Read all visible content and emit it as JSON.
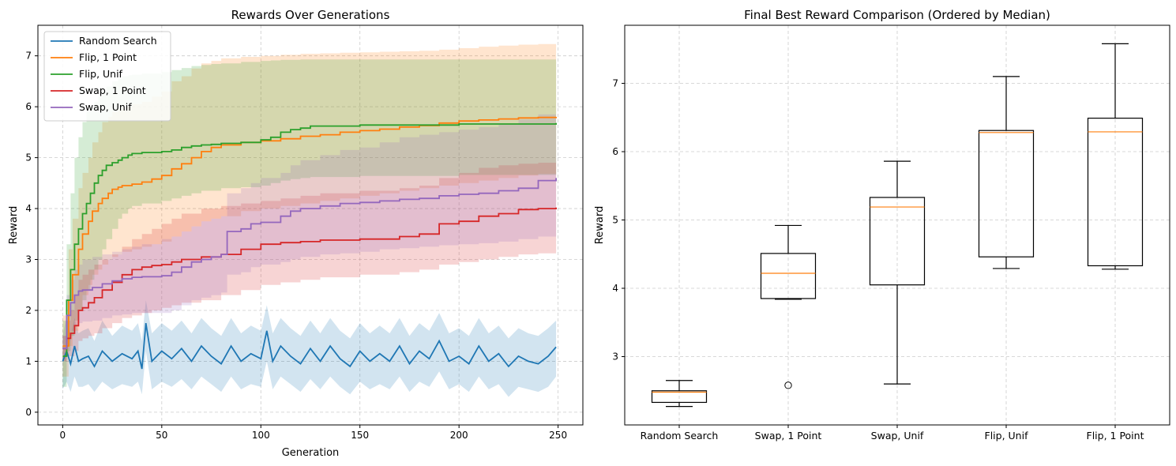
{
  "chart_data": [
    {
      "type": "line",
      "title": "Rewards Over Generations",
      "xlabel": "Generation",
      "ylabel": "Reward",
      "xlim": [
        -12.5,
        262.5
      ],
      "ylim": [
        -0.25,
        7.6
      ],
      "xticks": [
        0,
        50,
        100,
        150,
        200,
        250
      ],
      "yticks": [
        0,
        1,
        2,
        3,
        4,
        5,
        6,
        7
      ],
      "grid": true,
      "legend": "top-left",
      "series": [
        {
          "name": "Random Search",
          "color": "#1f77b4",
          "kind": "noisy",
          "x": [
            0,
            2,
            4,
            6,
            8,
            10,
            13,
            16,
            20,
            25,
            30,
            35,
            38,
            40,
            42,
            45,
            50,
            55,
            60,
            65,
            70,
            75,
            80,
            85,
            90,
            95,
            100,
            103,
            106,
            110,
            115,
            120,
            125,
            130,
            135,
            140,
            145,
            150,
            155,
            160,
            165,
            170,
            175,
            180,
            185,
            190,
            195,
            200,
            205,
            210,
            215,
            220,
            225,
            230,
            235,
            240,
            245,
            249
          ],
          "y": [
            1.0,
            1.2,
            0.95,
            1.3,
            1.0,
            1.05,
            1.1,
            0.9,
            1.2,
            1.0,
            1.15,
            1.05,
            1.2,
            0.85,
            1.75,
            1.0,
            1.2,
            1.05,
            1.25,
            1.0,
            1.3,
            1.1,
            0.95,
            1.3,
            1.0,
            1.15,
            1.05,
            1.6,
            1.0,
            1.3,
            1.1,
            0.95,
            1.25,
            1.0,
            1.3,
            1.05,
            0.9,
            1.2,
            1.0,
            1.15,
            1.0,
            1.3,
            0.95,
            1.2,
            1.05,
            1.4,
            1.0,
            1.1,
            0.95,
            1.3,
            1.0,
            1.15,
            0.9,
            1.1,
            1.0,
            0.95,
            1.1,
            1.28
          ],
          "upper": [
            1.5,
            1.9,
            1.5,
            1.85,
            1.55,
            1.6,
            1.65,
            1.4,
            1.8,
            1.5,
            1.7,
            1.6,
            1.75,
            1.4,
            2.2,
            1.55,
            1.75,
            1.6,
            1.8,
            1.55,
            1.85,
            1.65,
            1.5,
            1.85,
            1.55,
            1.7,
            1.6,
            2.1,
            1.55,
            1.85,
            1.65,
            1.5,
            1.8,
            1.55,
            1.85,
            1.6,
            1.45,
            1.75,
            1.55,
            1.7,
            1.55,
            1.85,
            1.5,
            1.75,
            1.6,
            1.95,
            1.55,
            1.65,
            1.5,
            1.85,
            1.55,
            1.7,
            1.45,
            1.65,
            1.55,
            1.5,
            1.65,
            1.8
          ],
          "lower": [
            0.45,
            0.6,
            0.4,
            0.7,
            0.5,
            0.5,
            0.55,
            0.4,
            0.6,
            0.45,
            0.55,
            0.5,
            0.6,
            0.35,
            1.2,
            0.45,
            0.6,
            0.5,
            0.65,
            0.45,
            0.7,
            0.55,
            0.4,
            0.7,
            0.45,
            0.55,
            0.5,
            1.0,
            0.45,
            0.7,
            0.55,
            0.4,
            0.65,
            0.45,
            0.7,
            0.5,
            0.35,
            0.6,
            0.45,
            0.55,
            0.45,
            0.7,
            0.4,
            0.6,
            0.5,
            0.8,
            0.45,
            0.55,
            0.4,
            0.7,
            0.45,
            0.55,
            0.3,
            0.5,
            0.45,
            0.4,
            0.5,
            0.7
          ]
        },
        {
          "name": "Flip, 1 Point",
          "color": "#ff7f0e",
          "kind": "step",
          "x": [
            0,
            3,
            5,
            8,
            10,
            13,
            15,
            18,
            20,
            23,
            25,
            28,
            30,
            35,
            40,
            45,
            50,
            55,
            60,
            65,
            70,
            75,
            80,
            90,
            100,
            110,
            120,
            130,
            140,
            150,
            160,
            170,
            180,
            190,
            200,
            210,
            220,
            230,
            240,
            249
          ],
          "y": [
            1.3,
            2.2,
            2.7,
            3.2,
            3.5,
            3.75,
            3.95,
            4.1,
            4.2,
            4.3,
            4.38,
            4.42,
            4.45,
            4.48,
            4.52,
            4.58,
            4.65,
            4.78,
            4.88,
            5.0,
            5.12,
            5.2,
            5.25,
            5.3,
            5.33,
            5.37,
            5.42,
            5.45,
            5.5,
            5.53,
            5.56,
            5.6,
            5.63,
            5.68,
            5.72,
            5.74,
            5.76,
            5.78,
            5.79,
            5.8
          ],
          "upper": [
            1.9,
            3.2,
            3.8,
            4.4,
            4.7,
            5.0,
            5.3,
            5.5,
            5.7,
            5.8,
            5.9,
            5.95,
            6.0,
            6.05,
            6.1,
            6.2,
            6.3,
            6.5,
            6.6,
            6.75,
            6.85,
            6.9,
            6.95,
            6.98,
            7.0,
            7.02,
            7.04,
            7.05,
            7.06,
            7.07,
            7.08,
            7.09,
            7.1,
            7.12,
            7.15,
            7.18,
            7.2,
            7.22,
            7.23,
            7.24
          ],
          "lower": [
            0.7,
            1.3,
            1.6,
            2.0,
            2.3,
            2.5,
            2.7,
            2.8,
            2.9,
            3.0,
            3.05,
            3.1,
            3.15,
            3.2,
            3.25,
            3.3,
            3.35,
            3.45,
            3.55,
            3.65,
            3.75,
            3.8,
            3.85,
            3.95,
            4.0,
            4.05,
            4.1,
            4.15,
            4.2,
            4.25,
            4.3,
            4.35,
            4.4,
            4.45,
            4.5,
            4.55,
            4.6,
            4.65,
            4.68,
            4.7
          ]
        },
        {
          "name": "Flip, Unif",
          "color": "#2ca02c",
          "kind": "step",
          "x": [
            0,
            2,
            4,
            6,
            8,
            10,
            12,
            14,
            16,
            18,
            20,
            22,
            25,
            28,
            30,
            33,
            35,
            40,
            50,
            55,
            60,
            65,
            70,
            75,
            80,
            90,
            100,
            105,
            110,
            115,
            120,
            125,
            150,
            200,
            249
          ],
          "y": [
            1.1,
            2.2,
            2.8,
            3.3,
            3.6,
            3.9,
            4.1,
            4.3,
            4.5,
            4.65,
            4.75,
            4.85,
            4.9,
            4.95,
            5.0,
            5.05,
            5.08,
            5.1,
            5.12,
            5.15,
            5.2,
            5.23,
            5.25,
            5.26,
            5.28,
            5.3,
            5.35,
            5.4,
            5.5,
            5.55,
            5.58,
            5.62,
            5.64,
            5.66,
            5.68
          ],
          "upper": [
            1.8,
            3.3,
            4.3,
            5.0,
            5.4,
            5.7,
            5.9,
            6.0,
            6.1,
            6.2,
            6.3,
            6.4,
            6.5,
            6.55,
            6.6,
            6.62,
            6.63,
            6.65,
            6.68,
            6.72,
            6.76,
            6.8,
            6.82,
            6.84,
            6.85,
            6.88,
            6.9,
            6.91,
            6.92,
            6.92,
            6.93,
            6.93,
            6.93,
            6.93,
            6.93
          ],
          "lower": [
            0.5,
            1.2,
            1.5,
            1.8,
            2.0,
            2.2,
            2.4,
            2.6,
            2.8,
            3.0,
            3.2,
            3.4,
            3.6,
            3.8,
            3.9,
            4.0,
            4.05,
            4.1,
            4.15,
            4.2,
            4.25,
            4.3,
            4.35,
            4.35,
            4.4,
            4.42,
            4.45,
            4.5,
            4.55,
            4.58,
            4.6,
            4.62,
            4.64,
            4.66,
            4.68
          ]
        },
        {
          "name": "Swap, 1 Point",
          "color": "#d62728",
          "kind": "step",
          "x": [
            0,
            2,
            4,
            6,
            8,
            10,
            13,
            16,
            20,
            25,
            30,
            35,
            40,
            45,
            50,
            55,
            60,
            70,
            80,
            90,
            100,
            110,
            120,
            130,
            150,
            170,
            180,
            190,
            200,
            210,
            220,
            230,
            240,
            249
          ],
          "y": [
            1.25,
            1.45,
            1.55,
            1.7,
            2.0,
            2.05,
            2.15,
            2.25,
            2.4,
            2.55,
            2.7,
            2.8,
            2.85,
            2.88,
            2.9,
            2.95,
            3.0,
            3.05,
            3.1,
            3.2,
            3.3,
            3.33,
            3.35,
            3.38,
            3.4,
            3.45,
            3.5,
            3.7,
            3.75,
            3.85,
            3.9,
            3.98,
            4.0,
            4.02
          ],
          "upper": [
            1.5,
            1.8,
            2.0,
            2.3,
            2.6,
            2.7,
            2.8,
            2.9,
            3.0,
            3.1,
            3.25,
            3.4,
            3.5,
            3.6,
            3.7,
            3.8,
            3.9,
            4.0,
            4.05,
            4.1,
            4.15,
            4.2,
            4.25,
            4.3,
            4.35,
            4.4,
            4.45,
            4.6,
            4.7,
            4.8,
            4.85,
            4.88,
            4.9,
            4.91
          ],
          "lower": [
            1.0,
            1.1,
            1.1,
            1.2,
            1.4,
            1.45,
            1.5,
            1.55,
            1.65,
            1.75,
            1.85,
            1.9,
            1.95,
            2.0,
            2.05,
            2.1,
            2.15,
            2.2,
            2.3,
            2.4,
            2.5,
            2.55,
            2.6,
            2.65,
            2.7,
            2.75,
            2.8,
            2.9,
            2.95,
            3.0,
            3.05,
            3.1,
            3.12,
            3.13
          ]
        },
        {
          "name": " Swap, Unif",
          "color": "#9467bd",
          "kind": "step",
          "x": [
            0,
            2,
            4,
            6,
            8,
            10,
            15,
            20,
            25,
            30,
            35,
            40,
            50,
            55,
            60,
            65,
            70,
            75,
            80,
            83,
            90,
            95,
            100,
            110,
            115,
            120,
            130,
            140,
            150,
            160,
            170,
            180,
            190,
            200,
            210,
            220,
            230,
            240,
            249
          ],
          "y": [
            1.25,
            1.9,
            2.15,
            2.3,
            2.38,
            2.4,
            2.45,
            2.52,
            2.58,
            2.62,
            2.65,
            2.66,
            2.68,
            2.75,
            2.85,
            2.95,
            3.0,
            3.05,
            3.1,
            3.55,
            3.6,
            3.7,
            3.73,
            3.85,
            3.95,
            4.0,
            4.05,
            4.1,
            4.12,
            4.15,
            4.18,
            4.2,
            4.25,
            4.28,
            4.3,
            4.35,
            4.4,
            4.55,
            4.6
          ],
          "upper": [
            1.5,
            2.3,
            2.6,
            2.8,
            2.9,
            3.0,
            3.05,
            3.1,
            3.15,
            3.2,
            3.25,
            3.3,
            3.4,
            3.45,
            3.55,
            3.65,
            3.75,
            3.8,
            3.85,
            4.3,
            4.4,
            4.5,
            4.6,
            4.7,
            4.85,
            4.95,
            5.05,
            5.15,
            5.2,
            5.3,
            5.4,
            5.45,
            5.5,
            5.55,
            5.6,
            5.65,
            5.75,
            5.85,
            5.9
          ],
          "lower": [
            1.0,
            1.4,
            1.6,
            1.7,
            1.75,
            1.78,
            1.8,
            1.85,
            1.9,
            1.92,
            1.95,
            1.95,
            1.95,
            2.0,
            2.1,
            2.2,
            2.25,
            2.3,
            2.35,
            2.7,
            2.75,
            2.85,
            2.9,
            2.95,
            3.0,
            3.05,
            3.1,
            3.12,
            3.15,
            3.2,
            3.22,
            3.25,
            3.28,
            3.3,
            3.32,
            3.35,
            3.4,
            3.45,
            3.5
          ]
        }
      ]
    },
    {
      "type": "box",
      "title": "Final Best Reward Comparison (Ordered by Median)",
      "xlabel": "",
      "ylabel": "Reward",
      "ylim": [
        2.0,
        7.85
      ],
      "yticks": [
        3,
        4,
        5,
        6,
        7
      ],
      "grid": true,
      "categories": [
        "Random Search",
        "Swap, 1 Point",
        "Swap, Unif",
        "Flip, Unif",
        "Flip, 1 Point"
      ],
      "boxes": [
        {
          "whislo": 2.27,
          "q1": 2.33,
          "med": 2.48,
          "q3": 2.5,
          "whishi": 2.65,
          "fliers": []
        },
        {
          "whislo": 3.84,
          "q1": 3.85,
          "med": 4.22,
          "q3": 4.51,
          "whishi": 4.92,
          "fliers": [
            2.58
          ]
        },
        {
          "whislo": 2.6,
          "q1": 4.05,
          "med": 5.19,
          "q3": 5.33,
          "whishi": 5.86,
          "fliers": []
        },
        {
          "whislo": 4.29,
          "q1": 4.46,
          "med": 6.28,
          "q3": 6.31,
          "whishi": 7.1,
          "fliers": []
        },
        {
          "whislo": 4.28,
          "q1": 4.33,
          "med": 6.29,
          "q3": 6.49,
          "whishi": 7.58,
          "fliers": []
        }
      ]
    }
  ]
}
